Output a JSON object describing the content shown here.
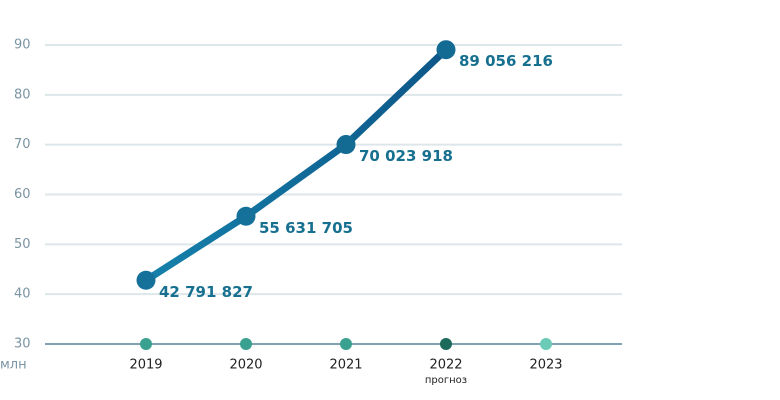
{
  "chart_data": {
    "type": "line",
    "y_unit": "млн",
    "categories": [
      "2019",
      "2020",
      "2021",
      "2022",
      "2023"
    ],
    "category_notes": [
      null,
      null,
      null,
      "прогноз",
      null
    ],
    "category_colors": [
      "#3aa191",
      "#3aa191",
      "#3aa191",
      "#1b6a5a",
      "#6ccbb6"
    ],
    "series": [
      {
        "name": "values",
        "color": "#1581ab",
        "color_end": "#0d5688",
        "values": [
          42.791827,
          55.631705,
          70.023918,
          89.056216,
          null
        ],
        "value_labels": [
          "42 791 827",
          "55 631 705",
          "70 023 918",
          "89 056 216",
          null
        ]
      }
    ],
    "ylim": [
      30,
      90
    ],
    "yticks": [
      30,
      40,
      50,
      60,
      70,
      80,
      90
    ],
    "grid": true
  }
}
